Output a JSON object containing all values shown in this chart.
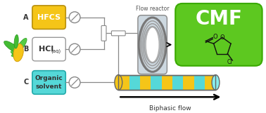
{
  "bg_color": "#ffffff",
  "box_A_color": "#F5C518",
  "box_B_color": "#ffffff",
  "box_C_color": "#55D8D8",
  "cmf_box_color": "#5DC820",
  "cmf_text": "CMF",
  "label_A": "A",
  "label_B": "B",
  "label_C": "C",
  "text_HFCS": "HFCS",
  "text_HCl": "HCl",
  "text_HCl_sub": "(aq)",
  "text_organic": "Organic\nsolvent",
  "text_flow_reactor": "Flow reactor",
  "text_biphasic": "Biphasic flow",
  "biphasic_colors": [
    "#F5C518",
    "#55D8D8"
  ],
  "arrow_color": "#000000",
  "line_color": "#888888",
  "reactor_color": "#c0c8d0"
}
